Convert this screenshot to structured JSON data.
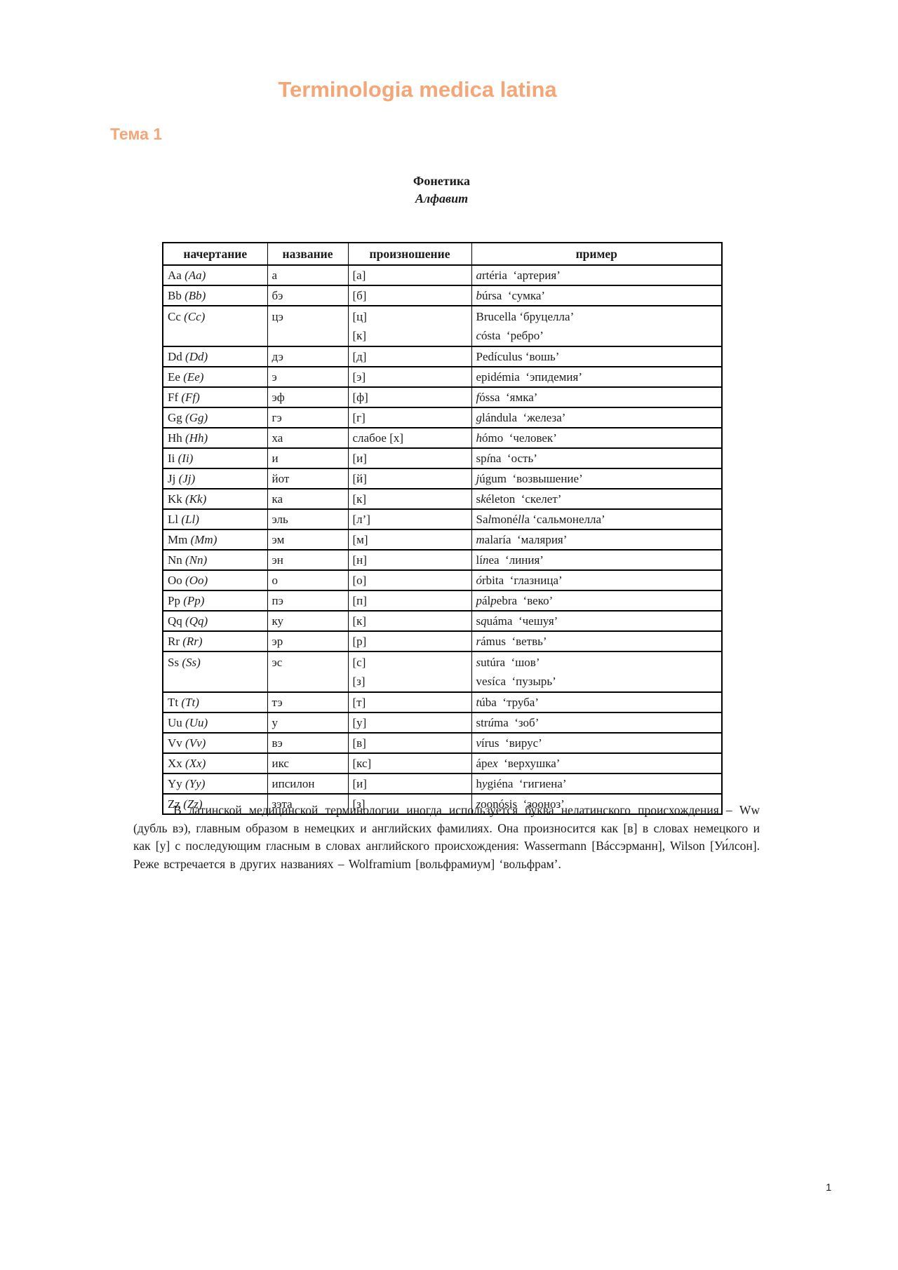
{
  "page": {
    "title": "Terminologia medica latina",
    "section": "Тема 1",
    "page_number": "1",
    "accent_color": "#F4A676"
  },
  "table": {
    "caption_line1": "Фонетика",
    "caption_line2": "Алфавит",
    "headers": [
      "начертание",
      "название",
      "произношение",
      "пример"
    ],
    "rows": [
      {
        "letter_html": "Aa&nbsp;<i>(Aa)</i>",
        "name_html": "а",
        "pron_html": "[а]",
        "example_html": "<i>a</i>rtéria&nbsp; ‘артерия’"
      },
      {
        "letter_html": "Bb&nbsp;<i>(Bb)</i>",
        "name_html": "бэ",
        "pron_html": "[б]",
        "example_html": "<i>b</i>úrsa&nbsp; ‘сумка’"
      },
      {
        "letter_html": "Cc&nbsp;<i>(Cc)</i>",
        "name_html": "цэ",
        "pron_html": "[ц]<br>[к]",
        "example_html": "Brucella ‘бруцелла’<br><i>c</i>ósta&nbsp; ‘ребро’",
        "double": true
      },
      {
        "letter_html": "Dd&nbsp;<i>(Dd)</i>",
        "name_html": "дэ",
        "pron_html": "[д]",
        "example_html": "Pedículus ‘вошь’"
      },
      {
        "letter_html": "Ee&nbsp;<i>(Ee)</i>",
        "name_html": "э",
        "pron_html": "[э]",
        "example_html": "epidémia&nbsp; ‘эпидемия’"
      },
      {
        "letter_html": "Ff&nbsp;<i>(Ff)</i>",
        "name_html": "эф",
        "pron_html": "[ф]",
        "example_html": "<i>f</i>óssa&nbsp; ‘ямка’"
      },
      {
        "letter_html": "Gg&nbsp;<i>(Gg)</i>",
        "name_html": "гэ",
        "pron_html": "[г]",
        "example_html": "<i>g</i>lándula&nbsp; ‘железа’"
      },
      {
        "letter_html": "Hh&nbsp;<i>(Hh)</i>",
        "name_html": "ха",
        "pron_html": "слабое [х]",
        "example_html": "<i>h</i>ómo&nbsp; ‘человек’"
      },
      {
        "letter_html": "Ii&nbsp;<i>(Ii)</i>",
        "name_html": "и",
        "pron_html": "[и]",
        "example_html": "sp<i>í</i>na&nbsp; ‘ость’"
      },
      {
        "letter_html": "Jj&nbsp;<i>(Jj)</i>",
        "name_html": "йот",
        "pron_html": "[й]",
        "example_html": "<i>j</i>úgum&nbsp; ‘возвышение’"
      },
      {
        "letter_html": "Kk&nbsp;<i>(Kk)</i>",
        "name_html": "ка",
        "pron_html": "[к]",
        "example_html": "s<i>k</i>életon&nbsp; ‘скелет’"
      },
      {
        "letter_html": "Ll&nbsp;<i>(Ll)</i>",
        "name_html": "эль",
        "pron_html": "[л’]",
        "example_html": "Sa<i>l</i>moné<i>ll</i>a ‘сальмонелла’"
      },
      {
        "letter_html": "Mm&nbsp;<i>(Mm)</i>",
        "name_html": "эм",
        "pron_html": "[м]",
        "example_html": "<i>m</i>alaría&nbsp; ‘малярия’"
      },
      {
        "letter_html": "Nn&nbsp;<i>(Nn)</i>",
        "name_html": "эн",
        "pron_html": "[н]",
        "example_html": "lí<i>n</i>ea&nbsp; ‘линия’"
      },
      {
        "letter_html": "Oo&nbsp;<i>(Oo)</i>",
        "name_html": "о",
        "pron_html": "[о]",
        "example_html": "<i>ó</i>rbita&nbsp; ‘глазница’"
      },
      {
        "letter_html": "Pp&nbsp;<i>(Pp)</i>",
        "name_html": "пэ",
        "pron_html": "[п]",
        "example_html": "<i>p</i>ál<i>p</i>ebra&nbsp; ‘веко’"
      },
      {
        "letter_html": "Qq&nbsp;<i>(Qq)</i>",
        "name_html": "ку",
        "pron_html": "[к]",
        "example_html": "s<i>q</i>uáma&nbsp; ‘чешуя’"
      },
      {
        "letter_html": "Rr&nbsp;<i>(Rr)</i>",
        "name_html": "эр",
        "pron_html": "[р]",
        "example_html": "<i>r</i>ámus&nbsp; ‘ветвь’"
      },
      {
        "letter_html": "Ss&nbsp;<i>(Ss)</i>",
        "name_html": "эс",
        "pron_html": "[с]<br>[з]",
        "example_html": "<i>s</i>utúra&nbsp; ‘шов’<br>ve<i>s</i>íca&nbsp; ‘пузырь’",
        "double": true
      },
      {
        "letter_html": "Tt&nbsp;<i>(Tt)</i>",
        "name_html": "тэ",
        "pron_html": "[т]",
        "example_html": "<i>t</i>úba&nbsp; ‘труба’"
      },
      {
        "letter_html": "Uu&nbsp;<i>(Uu)</i>",
        "name_html": "у",
        "pron_html": "[у]",
        "example_html": "str<i>ú</i>ma&nbsp; ‘зоб’"
      },
      {
        "letter_html": "Vv&nbsp;<i>(Vv)</i>",
        "name_html": "вэ",
        "pron_html": "[в]",
        "example_html": "<i>v</i>írus&nbsp; ‘вирус’"
      },
      {
        "letter_html": "Xx&nbsp;<i>(Xx)</i>",
        "name_html": "икс",
        "pron_html": "[кс]",
        "example_html": "ápe<i>x</i>&nbsp; ‘верхушка’"
      },
      {
        "letter_html": "Yy&nbsp;<i>(Yy)</i>",
        "name_html": "ипсилон",
        "pron_html": "[и]",
        "example_html": "h<i>y</i>giéna&nbsp; ‘гигиена’"
      },
      {
        "letter_html": "Zz&nbsp;<i>(Zz)</i>",
        "name_html": "зэта",
        "pron_html": "[з]",
        "example_html": "<i>z</i>oonósis&nbsp; ‘зооноз’"
      }
    ]
  },
  "paragraph": {
    "text": "В латинской медицинской терминологии иногда используется буква нелатинского происхождения – Ww (дубль вэ), главным образом в немецких и английских фамилиях. Она произносится как [в] в словах немецкого и как [у] с последующим гласным в словах английского происхождения: Wassermann [Вáссэрманн], Wilson [Уи́лсон]. Реже встречается в других названиях – Wolframium [вольфрамиум] ‘вольфрам’."
  }
}
